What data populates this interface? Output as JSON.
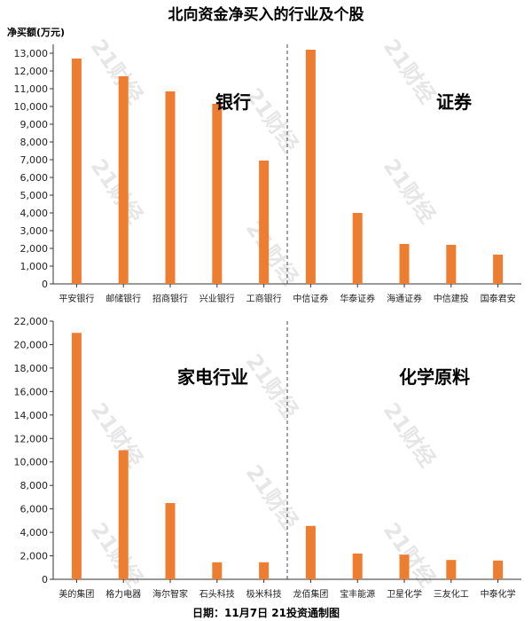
{
  "title": "北向资金净买入的行业及个股",
  "ylabel": "净买额(万元)",
  "footer": "日期：11月7日 21投资通制图",
  "watermark": "21财经",
  "colors": {
    "bar": "#ED7D31",
    "axis": "#333333",
    "divider": "#444444"
  },
  "chart_data": [
    {
      "type": "bar",
      "ylim": [
        0,
        13500
      ],
      "yticks": [
        0,
        1000,
        2000,
        3000,
        4000,
        5000,
        6000,
        7000,
        8000,
        9000,
        10000,
        11000,
        12000,
        13000
      ],
      "ytick_labels": [
        "0",
        "1,000",
        "2,000",
        "3,000",
        "4,000",
        "5,000",
        "6,000",
        "7,000",
        "8,000",
        "9,000",
        "10,000",
        "11,000",
        "12,000",
        "13,000"
      ],
      "categories": [
        "平安银行",
        "邮储银行",
        "招商银行",
        "兴业银行",
        "工商银行",
        "中信证券",
        "华泰证券",
        "海通证券",
        "中信建投",
        "国泰君安"
      ],
      "values": [
        12700,
        11700,
        10850,
        10150,
        6950,
        13200,
        4000,
        2250,
        2200,
        1650
      ],
      "groups": [
        {
          "label": "银行",
          "count": 5
        },
        {
          "label": "证券",
          "count": 5
        }
      ]
    },
    {
      "type": "bar",
      "ylim": [
        0,
        22000
      ],
      "yticks": [
        0,
        2000,
        4000,
        6000,
        8000,
        10000,
        12000,
        14000,
        16000,
        18000,
        20000,
        22000
      ],
      "ytick_labels": [
        "0",
        "2,000",
        "4,000",
        "6,000",
        "8,000",
        "10,000",
        "12,000",
        "14,000",
        "16,000",
        "18,000",
        "20,000",
        "22,000"
      ],
      "categories": [
        "美的集团",
        "格力电器",
        "海尔智家",
        "石头科技",
        "极米科技",
        "龙佰集团",
        "宝丰能源",
        "卫星化学",
        "三友化工",
        "中泰化学"
      ],
      "values": [
        21000,
        11000,
        6500,
        1450,
        1450,
        4550,
        2200,
        2100,
        1650,
        1600
      ],
      "groups": [
        {
          "label": "家电行业",
          "count": 5
        },
        {
          "label": "化学原料",
          "count": 5
        }
      ]
    }
  ]
}
